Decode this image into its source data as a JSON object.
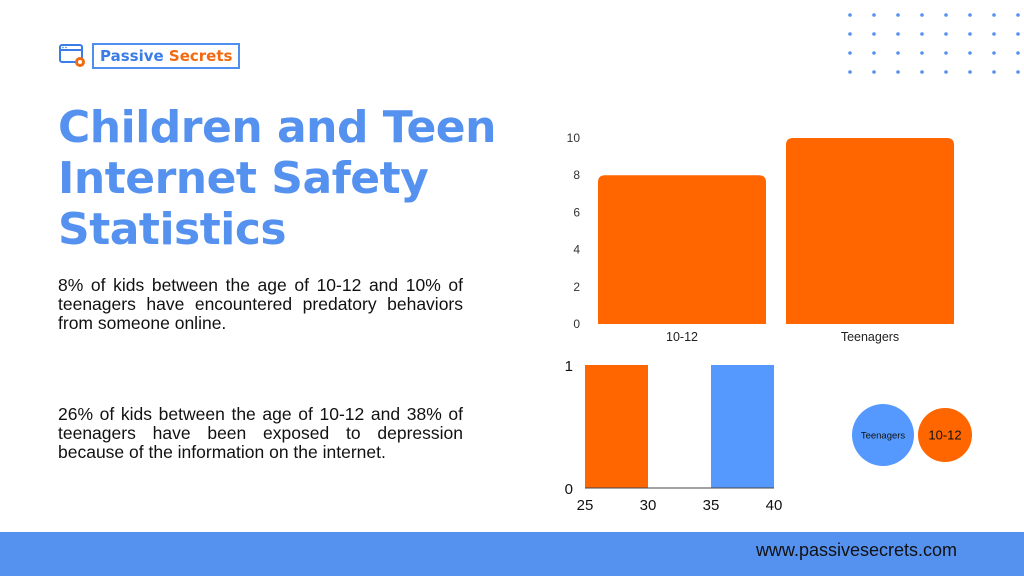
{
  "brand": {
    "word1": "Passive",
    "word2": "Secrets"
  },
  "title": "Children and Teen Internet Safety Statistics",
  "paragraphs": {
    "p1": "8% of kids between the age of 10-12 and 10% of teenagers have encountered predatory behaviors from someone online.",
    "p2": "26% of kids between the age of 10-12 and 38% of teenagers have been exposed to depression because of the information on the internet."
  },
  "footer": {
    "url": "www.passivesecrets.com"
  },
  "colors": {
    "accent": "#5591ef",
    "orange": "#ff6600",
    "blue": "#5599ff"
  },
  "chart_data": [
    {
      "type": "bar",
      "categories": [
        "10-12",
        "Teenagers"
      ],
      "values": [
        8,
        10
      ],
      "ylim": [
        0,
        10
      ],
      "yticks": [
        0,
        2,
        4,
        6,
        8,
        10
      ],
      "color": "#ff6600"
    },
    {
      "type": "bar",
      "xlim": [
        25,
        40
      ],
      "xticks": [
        25,
        30,
        35,
        40
      ],
      "ylim": [
        0,
        1
      ],
      "yticks": [
        0,
        1
      ],
      "bars": [
        {
          "x0": 25,
          "x1": 30,
          "value": 1,
          "color": "#ff6600"
        },
        {
          "x0": 35,
          "x1": 40,
          "value": 1,
          "color": "#5599ff"
        }
      ]
    },
    {
      "type": "scatter",
      "points": [
        {
          "label": "Teenagers",
          "color": "#5599ff"
        },
        {
          "label": "10-12",
          "color": "#ff6600"
        }
      ]
    }
  ]
}
